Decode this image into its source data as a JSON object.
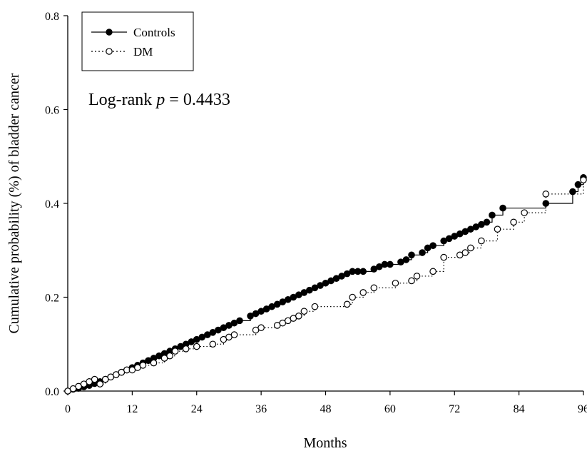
{
  "chart_data": {
    "type": "line",
    "xlabel": "Months",
    "ylabel": "Cumulative probability (%) of  bladder cancer",
    "xlim": [
      0,
      96
    ],
    "ylim": [
      0,
      0.8
    ],
    "xticks": [
      0,
      12,
      24,
      36,
      48,
      60,
      72,
      84,
      96
    ],
    "xtick_labels": [
      "0",
      "12",
      "24",
      "36",
      "48",
      "60",
      "72",
      "84",
      "96"
    ],
    "yticks": [
      0.0,
      0.2,
      0.4,
      0.6,
      0.8
    ],
    "ytick_labels": [
      "0.0",
      "0.2",
      "0.4",
      "0.6",
      "0.8"
    ],
    "grid": false,
    "legend_position": "top-left",
    "annotation": {
      "prefix": "Log-rank ",
      "p": "p",
      "suffix": " = 0.4433"
    },
    "series": [
      {
        "name": "Controls",
        "color": "#000000",
        "marker": "filled-circle",
        "line_style": "solid",
        "x": [
          0,
          1,
          2,
          3,
          4,
          5,
          6,
          7,
          8,
          9,
          10,
          11,
          12,
          13,
          14,
          15,
          16,
          17,
          18,
          19,
          20,
          21,
          22,
          23,
          24,
          25,
          26,
          27,
          28,
          29,
          30,
          31,
          32,
          34,
          35,
          36,
          37,
          38,
          39,
          40,
          41,
          42,
          43,
          44,
          45,
          46,
          47,
          48,
          49,
          50,
          51,
          52,
          53,
          54,
          55,
          57,
          58,
          59,
          60,
          62,
          63,
          64,
          66,
          67,
          68,
          70,
          71,
          72,
          73,
          74,
          75,
          76,
          77,
          78,
          79,
          81,
          89,
          94,
          95,
          96
        ],
        "y": [
          0.0,
          0.004,
          0.006,
          0.009,
          0.012,
          0.016,
          0.02,
          0.025,
          0.03,
          0.035,
          0.04,
          0.045,
          0.05,
          0.055,
          0.06,
          0.065,
          0.07,
          0.075,
          0.08,
          0.085,
          0.09,
          0.095,
          0.1,
          0.105,
          0.11,
          0.115,
          0.12,
          0.125,
          0.13,
          0.135,
          0.14,
          0.145,
          0.15,
          0.16,
          0.165,
          0.17,
          0.175,
          0.18,
          0.185,
          0.19,
          0.195,
          0.2,
          0.205,
          0.21,
          0.215,
          0.22,
          0.225,
          0.23,
          0.235,
          0.24,
          0.245,
          0.25,
          0.255,
          0.255,
          0.255,
          0.26,
          0.265,
          0.27,
          0.27,
          0.275,
          0.28,
          0.29,
          0.295,
          0.305,
          0.31,
          0.32,
          0.325,
          0.33,
          0.335,
          0.34,
          0.345,
          0.35,
          0.355,
          0.36,
          0.375,
          0.39,
          0.4,
          0.425,
          0.44,
          0.455
        ]
      },
      {
        "name": "DM",
        "color": "#000000",
        "marker": "open-circle",
        "line_style": "dotted",
        "x": [
          0,
          1,
          2,
          3,
          4,
          5,
          6,
          7,
          8,
          9,
          10,
          11,
          12,
          13,
          14,
          16,
          18,
          19,
          20,
          22,
          24,
          27,
          29,
          30,
          31,
          35,
          36,
          39,
          40,
          41,
          42,
          43,
          44,
          46,
          52,
          53,
          55,
          57,
          61,
          64,
          65,
          68,
          70,
          73,
          74,
          75,
          77,
          80,
          83,
          85,
          89,
          96
        ],
        "y": [
          0.0,
          0.005,
          0.01,
          0.015,
          0.02,
          0.025,
          0.015,
          0.025,
          0.03,
          0.035,
          0.04,
          0.045,
          0.045,
          0.05,
          0.055,
          0.06,
          0.07,
          0.075,
          0.085,
          0.09,
          0.095,
          0.1,
          0.11,
          0.115,
          0.12,
          0.13,
          0.135,
          0.14,
          0.145,
          0.15,
          0.155,
          0.16,
          0.17,
          0.18,
          0.185,
          0.2,
          0.21,
          0.22,
          0.23,
          0.235,
          0.245,
          0.255,
          0.285,
          0.29,
          0.295,
          0.305,
          0.32,
          0.345,
          0.36,
          0.38,
          0.42,
          0.45
        ]
      }
    ]
  }
}
